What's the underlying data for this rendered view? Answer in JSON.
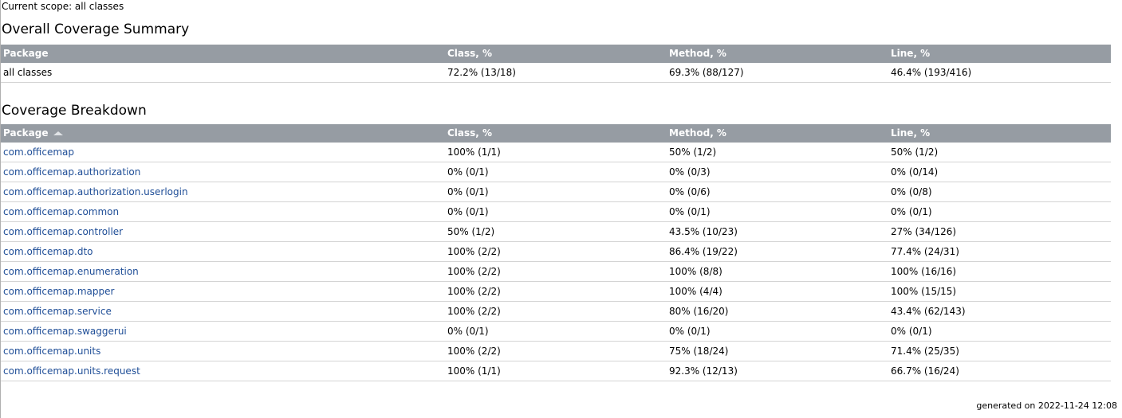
{
  "scope_text": "Current scope: all classes",
  "summary": {
    "title": "Overall Coverage Summary",
    "headers": [
      "Package",
      "Class, %",
      "Method, %",
      "Line, %"
    ],
    "row": {
      "package": "all classes",
      "class": "72.2% (13/18)",
      "method": "69.3% (88/127)",
      "line": "46.4% (193/416)"
    }
  },
  "breakdown": {
    "title": "Coverage Breakdown",
    "headers": [
      "Package",
      "Class, %",
      "Method, %",
      "Line, %"
    ],
    "sort_icon": "sort-ascending-icon",
    "rows": [
      {
        "package": "com.officemap",
        "class": "100% (1/1)",
        "method": "50% (1/2)",
        "line": "50% (1/2)"
      },
      {
        "package": "com.officemap.authorization",
        "class": "0% (0/1)",
        "method": "0% (0/3)",
        "line": "0% (0/14)"
      },
      {
        "package": "com.officemap.authorization.userlogin",
        "class": "0% (0/1)",
        "method": "0% (0/6)",
        "line": "0% (0/8)"
      },
      {
        "package": "com.officemap.common",
        "class": "0% (0/1)",
        "method": "0% (0/1)",
        "line": "0% (0/1)"
      },
      {
        "package": "com.officemap.controller",
        "class": "50% (1/2)",
        "method": "43.5% (10/23)",
        "line": "27% (34/126)"
      },
      {
        "package": "com.officemap.dto",
        "class": "100% (2/2)",
        "method": "86.4% (19/22)",
        "line": "77.4% (24/31)"
      },
      {
        "package": "com.officemap.enumeration",
        "class": "100% (2/2)",
        "method": "100% (8/8)",
        "line": "100% (16/16)"
      },
      {
        "package": "com.officemap.mapper",
        "class": "100% (2/2)",
        "method": "100% (4/4)",
        "line": "100% (15/15)"
      },
      {
        "package": "com.officemap.service",
        "class": "100% (2/2)",
        "method": "80% (16/20)",
        "line": "43.4% (62/143)"
      },
      {
        "package": "com.officemap.swaggerui",
        "class": "0% (0/1)",
        "method": "0% (0/1)",
        "line": "0% (0/1)"
      },
      {
        "package": "com.officemap.units",
        "class": "100% (2/2)",
        "method": "75% (18/24)",
        "line": "71.4% (25/35)"
      },
      {
        "package": "com.officemap.units.request",
        "class": "100% (1/1)",
        "method": "92.3% (12/13)",
        "line": "66.7% (16/24)"
      }
    ]
  },
  "footer": "generated on 2022-11-24 12:08",
  "colors": {
    "header_bg": "#969ca3",
    "link": "#1f4e97",
    "row_border": "#d4d4d4"
  }
}
